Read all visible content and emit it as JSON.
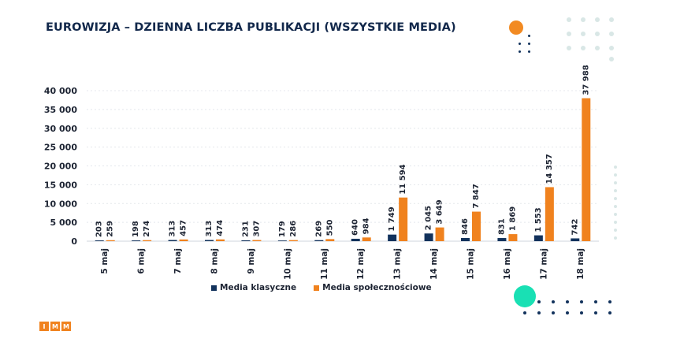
{
  "header": {
    "title": "EUROWIZJA – DZIENNA LICZBA PUBLIKACJI (WSZYSTKIE MEDIA)"
  },
  "colors": {
    "classic": "#12325c",
    "social": "#f0821e",
    "accent_orange": "#f28a22",
    "accent_teal": "#19e0b4",
    "dot_navy": "#12325c",
    "dot_gray": "#d9e7e6"
  },
  "logo": {
    "letters": [
      "I",
      "M",
      "M"
    ]
  },
  "chart_data": {
    "type": "bar",
    "title": "EUROWIZJA – DZIENNA LICZBA PUBLIKACJI (WSZYSTKIE MEDIA)",
    "xlabel": "",
    "ylabel": "",
    "ylim": [
      0,
      40000
    ],
    "yticks": [
      0,
      5000,
      10000,
      15000,
      20000,
      25000,
      30000,
      35000,
      40000
    ],
    "ytick_labels": [
      "0",
      "5 000",
      "10 000",
      "15 000",
      "20 000",
      "25 000",
      "30 000",
      "35 000",
      "40 000"
    ],
    "grid": true,
    "legend": "bottom",
    "categories": [
      "5 maj",
      "6 maj",
      "7 maj",
      "8 maj",
      "9 maj",
      "10 maj",
      "11 maj",
      "12 maj",
      "13 maj",
      "14 maj",
      "15 maj",
      "16 maj",
      "17 maj",
      "18 maj"
    ],
    "series": [
      {
        "name": "Media klasyczne",
        "values": [
          203,
          198,
          313,
          313,
          231,
          179,
          269,
          640,
          1749,
          2045,
          846,
          831,
          1553,
          742
        ],
        "labels": [
          "203",
          "198",
          "313",
          "313",
          "231",
          "179",
          "269",
          "640",
          "1 749",
          "2 045",
          "846",
          "831",
          "1 553",
          "742"
        ]
      },
      {
        "name": "Media społecznościowe",
        "values": [
          259,
          274,
          457,
          474,
          307,
          286,
          550,
          984,
          11594,
          3649,
          7847,
          1869,
          14357,
          37988
        ],
        "labels": [
          "259",
          "274",
          "457",
          "474",
          "307",
          "286",
          "550",
          "984",
          "11 594",
          "3 649",
          "7 847",
          "1 869",
          "14 357",
          "37 988"
        ]
      }
    ]
  }
}
